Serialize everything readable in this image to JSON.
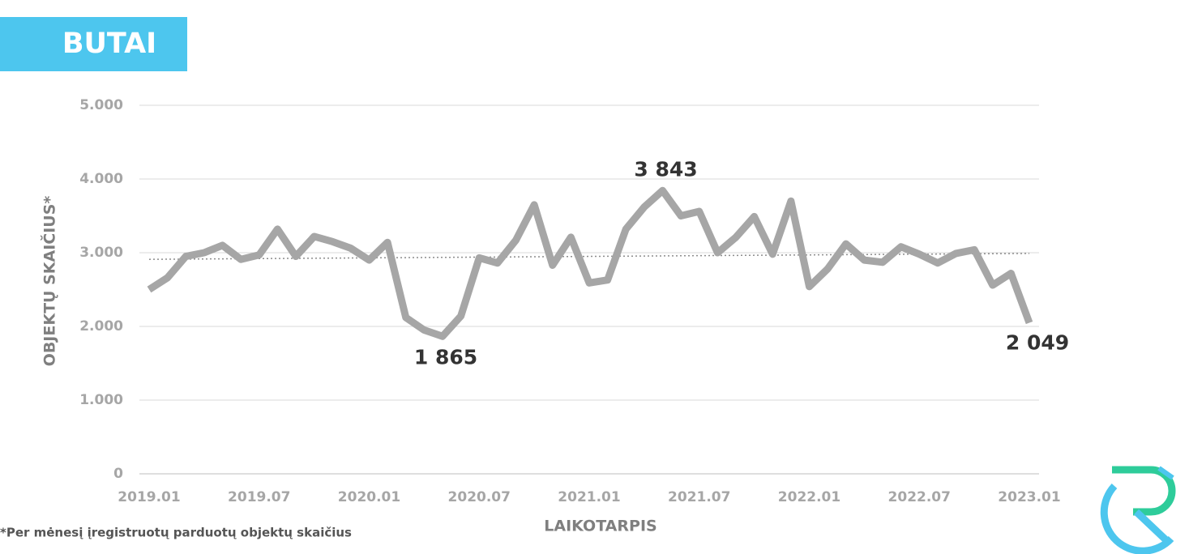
{
  "badge": "BUTAI",
  "footnote": "*Per mėnesį įregistruotų parduotų objektų skaičius",
  "chart_data": {
    "type": "line",
    "xlabel": "LAIKOTARPIS",
    "ylabel": "OBJEKTŲ SKAIČIUS*",
    "categories": [
      "2019.01",
      null,
      null,
      null,
      null,
      null,
      "2019.07",
      null,
      null,
      null,
      null,
      null,
      "2020.01",
      null,
      null,
      null,
      null,
      null,
      "2020.07",
      null,
      null,
      null,
      null,
      null,
      "2021.01",
      null,
      null,
      null,
      null,
      null,
      "2021.07",
      null,
      null,
      null,
      null,
      null,
      "2022.01",
      null,
      null,
      null,
      null,
      null,
      "2022.07",
      null,
      null,
      null,
      null,
      null,
      "2023.01"
    ],
    "values": [
      2500,
      2660,
      2950,
      3000,
      3100,
      2910,
      2970,
      3320,
      2950,
      3220,
      3150,
      3060,
      2900,
      3140,
      2120,
      1950,
      1865,
      2140,
      2930,
      2860,
      3170,
      3650,
      2830,
      3210,
      2590,
      2630,
      3320,
      3620,
      3843,
      3500,
      3560,
      3000,
      3210,
      3490,
      2980,
      3700,
      2540,
      2780,
      3120,
      2900,
      2870,
      3080,
      2980,
      2860,
      2990,
      3040,
      2560,
      2720,
      2049
    ],
    "value_labels": [
      null,
      null,
      null,
      null,
      null,
      null,
      null,
      null,
      null,
      null,
      null,
      null,
      null,
      null,
      null,
      null,
      "1 865",
      null,
      null,
      null,
      null,
      null,
      null,
      null,
      null,
      null,
      null,
      null,
      "3 843",
      null,
      null,
      null,
      null,
      null,
      null,
      null,
      null,
      null,
      null,
      null,
      null,
      null,
      null,
      null,
      null,
      null,
      null,
      null,
      "2 049"
    ],
    "trendline": [
      2910,
      2990
    ],
    "color": "#a6a6a6",
    "trend_color": "#8c8c8c",
    "ylim": [
      0,
      5000
    ],
    "yticks": [
      0,
      {
        "value": 1000,
        "label": "1.000"
      },
      {
        "value": 2000,
        "label": "2.000"
      },
      {
        "value": 3000,
        "label": "3.000"
      },
      {
        "value": 4000,
        "label": "4.000"
      },
      {
        "value": 5000,
        "label": "5.000"
      }
    ],
    "grid": true
  }
}
